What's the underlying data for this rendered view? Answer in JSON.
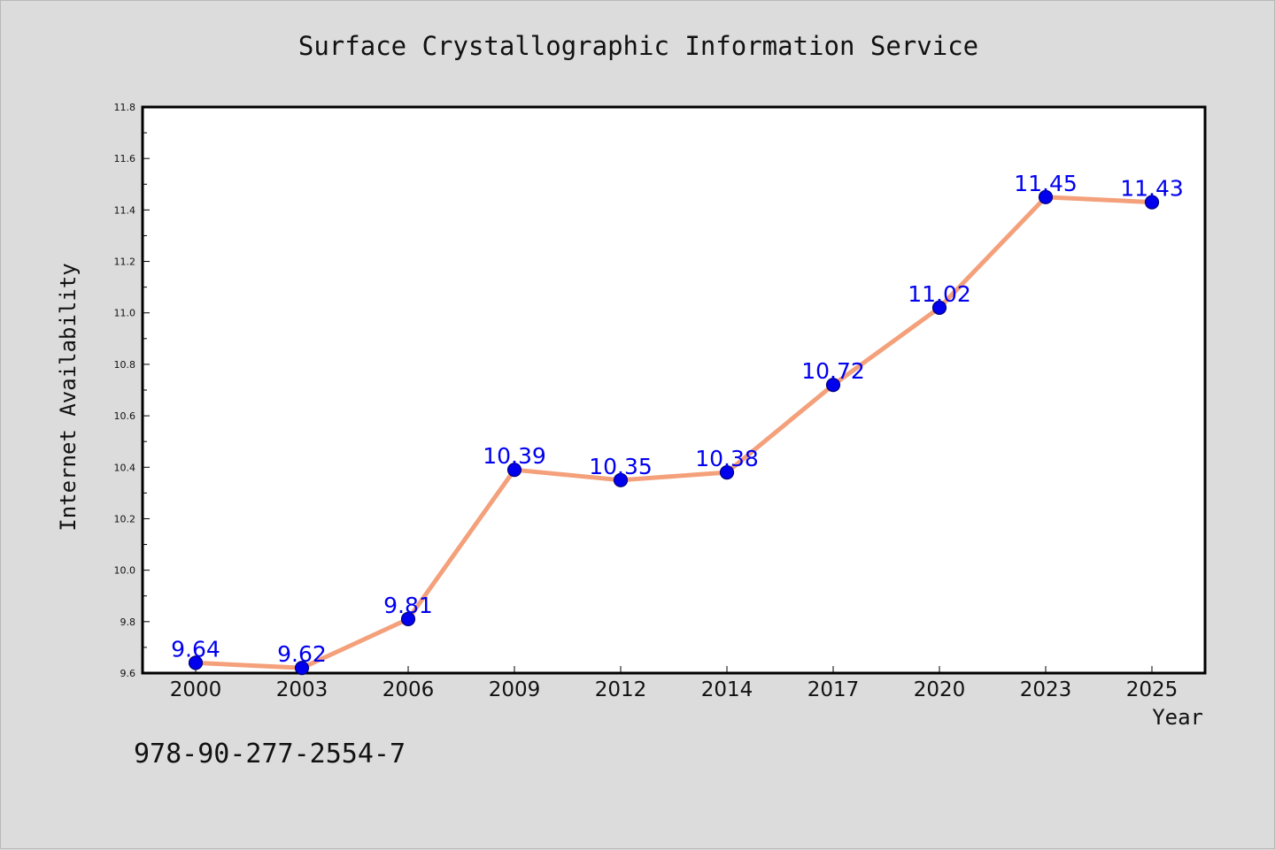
{
  "header": {
    "title": "Surface Crystallographic Information Service"
  },
  "footer": {
    "code": "978-90-277-2554-7"
  },
  "chart_data": {
    "type": "line",
    "title": "Surface Crystallographic Information Service",
    "xlabel": "Year",
    "ylabel": "Internet Availability",
    "categories": [
      "2000",
      "2003",
      "2006",
      "2009",
      "2012",
      "2014",
      "2017",
      "2020",
      "2023",
      "2025"
    ],
    "series": [
      {
        "values": [
          9.64,
          9.62,
          9.81,
          10.39,
          10.35,
          10.38,
          10.72,
          11.02,
          11.45,
          11.43
        ]
      }
    ],
    "data_labels": [
      "9.64",
      "9.62",
      "9.81",
      "10.39",
      "10.35",
      "10.38",
      "10.72",
      "11.02",
      "11.45",
      "11.43"
    ],
    "ylim": [
      9.6,
      11.8
    ],
    "yticks": [
      "9.6",
      "9.8",
      "10.0",
      "10.2",
      "10.4",
      "10.6",
      "10.8",
      "11.0",
      "11.2",
      "11.4",
      "11.6",
      "11.8"
    ],
    "grid": false,
    "legend": "none",
    "colors": {
      "line": "#f4a07a",
      "marker": "#0000ee",
      "label": "#0000ee",
      "background": "#dcdcdc",
      "plot_bg": "#ffffff"
    }
  }
}
